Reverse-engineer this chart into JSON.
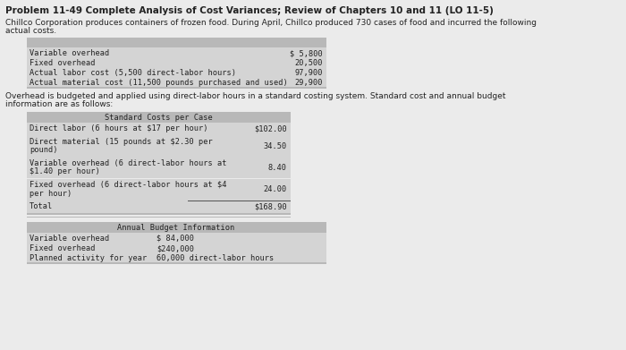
{
  "title": "Problem 11-49 Complete Analysis of Cost Variances; Review of Chapters 10 and 11 (LO 11-5)",
  "intro_line1": "Chillco Corporation produces containers of frozen food. During April, Chillco produced 730 cases of food and incurred the following",
  "intro_line2": "actual costs.",
  "overhead_line1": "Overhead is budgeted and applied using direct-labor hours in a standard costing system. Standard cost and annual budget",
  "overhead_line2": "information are as follows:",
  "bg_color": "#ebebeb",
  "table_bg": "#d4d4d4",
  "table_header_bg": "#b8b8b8",
  "table_border": "#888888",
  "actual_costs": [
    [
      "Variable overhead",
      "$ 5,800"
    ],
    [
      "Fixed overhead",
      "20,500"
    ],
    [
      "Actual labor cost (5,500 direct-labor hours)",
      "97,900"
    ],
    [
      "Actual material cost (11,500 pounds purchased and used)",
      "29,900"
    ]
  ],
  "standard_costs_header": "Standard Costs per Case",
  "standard_costs_rows": [
    {
      "left": "Direct labor (6 hours at $17 per hour)",
      "right": "$102.00",
      "lines": 1
    },
    {
      "left": "Direct material (15 pounds at $2.30 per\npound)",
      "right": "34.50",
      "lines": 2
    },
    {
      "left": "Variable overhead (6 direct-labor hours at\n$1.40 per hour)",
      "right": "8.40",
      "lines": 2
    },
    {
      "left": "Fixed overhead (6 direct-labor hours at $4\nper hour)",
      "right": "24.00",
      "lines": 2
    },
    {
      "left": "Total",
      "right": "$168.90",
      "lines": 1
    }
  ],
  "annual_budget_header": "Annual Budget Information",
  "annual_budget_rows": [
    [
      "Variable overhead",
      "$ 84,000"
    ],
    [
      "Fixed overhead",
      "$240,000"
    ],
    [
      "Planned activity for year",
      "60,000 direct-labor hours"
    ]
  ],
  "title_fontsize": 7.5,
  "body_fontsize": 6.5,
  "mono_fontsize": 6.2,
  "table_hdr_fontsize": 6.2
}
